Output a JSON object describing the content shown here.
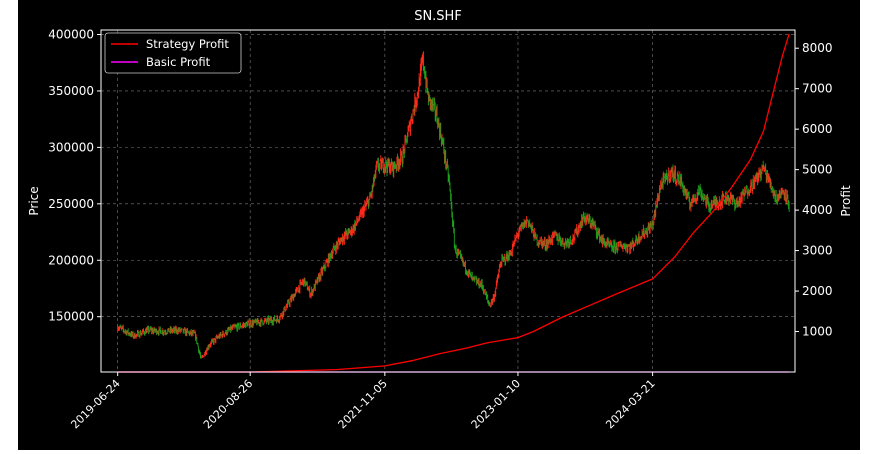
{
  "chart_data": {
    "type": "line",
    "title": "SN.SHF",
    "xlabel": "",
    "ylabel": "Price",
    "y2label": "Profit",
    "x_ticks": [
      "2019-06-24",
      "2020-08-26",
      "2021-11-05",
      "2023-01-10",
      "2024-03-21"
    ],
    "y_ticks": [
      150000,
      200000,
      250000,
      300000,
      350000,
      400000
    ],
    "y2_ticks": [
      1000,
      2000,
      3000,
      4000,
      5000,
      6000,
      7000,
      8000
    ],
    "ylim": [
      101000,
      404000
    ],
    "y2lim": [
      0,
      8450
    ],
    "xlim": [
      "2019-05-01",
      "2025-06-25"
    ],
    "grid": true,
    "legend_position": "upper left",
    "legend": [
      "Strategy Profit",
      "Basic Profit"
    ],
    "colors": {
      "up": "#ff2a1a",
      "down": "#1ca21c",
      "strategy": "#ff0000",
      "basic": "#ff00ff",
      "background": "#000000"
    },
    "price_series": {
      "name": "",
      "x": [
        "2019-06-24",
        "2019-08-15",
        "2019-10-01",
        "2019-11-15",
        "2020-01-10",
        "2020-03-01",
        "2020-03-20",
        "2020-04-15",
        "2020-05-15",
        "2020-07-01",
        "2020-08-26",
        "2020-10-15",
        "2020-11-25",
        "2021-01-05",
        "2021-02-15",
        "2021-03-10",
        "2021-04-20",
        "2021-05-20",
        "2021-06-20",
        "2021-07-20",
        "2021-08-20",
        "2021-09-20",
        "2021-10-10",
        "2021-11-05",
        "2021-12-01",
        "2022-01-01",
        "2022-01-25",
        "2022-02-20",
        "2022-03-08",
        "2022-03-25",
        "2022-04-20",
        "2022-05-10",
        "2022-06-01",
        "2022-06-20",
        "2022-07-15",
        "2022-08-15",
        "2022-09-15",
        "2022-10-10",
        "2022-10-25",
        "2022-11-15",
        "2022-12-15",
        "2023-01-10",
        "2023-02-10",
        "2023-03-10",
        "2023-04-10",
        "2023-05-10",
        "2023-06-10",
        "2023-07-10",
        "2023-08-10",
        "2023-09-10",
        "2023-10-10",
        "2023-11-10",
        "2023-12-10",
        "2024-01-10",
        "2024-02-10",
        "2024-03-01",
        "2024-03-21",
        "2024-04-15",
        "2024-05-20",
        "2024-06-20",
        "2024-07-20",
        "2024-08-20",
        "2024-09-20",
        "2024-10-20",
        "2024-11-20",
        "2024-12-20",
        "2025-01-20",
        "2025-02-15",
        "2025-03-15",
        "2025-04-05",
        "2025-04-25",
        "2025-05-20",
        "2025-06-06"
      ],
      "y": [
        141000,
        133000,
        138000,
        137000,
        138000,
        134000,
        112000,
        125000,
        132000,
        140000,
        144000,
        146000,
        148000,
        165000,
        182000,
        170000,
        192000,
        208000,
        220000,
        226000,
        240000,
        256000,
        283000,
        285000,
        282000,
        292000,
        320000,
        350000,
        378000,
        344000,
        330000,
        305000,
        270000,
        210000,
        198000,
        183000,
        178000,
        160000,
        168000,
        198000,
        205000,
        224000,
        236000,
        218000,
        214000,
        222000,
        215000,
        220000,
        238000,
        232000,
        217000,
        211000,
        213000,
        212000,
        222000,
        226000,
        232000,
        266000,
        278000,
        270000,
        250000,
        262000,
        248000,
        252000,
        256000,
        250000,
        262000,
        270000,
        282000,
        268000,
        255000,
        262000,
        250000
      ]
    },
    "strategy_series": {
      "name": "Strategy Profit",
      "x": [
        "2019-06-24",
        "2020-08-26",
        "2021-06-01",
        "2021-11-05",
        "2022-02-01",
        "2022-05-01",
        "2022-08-01",
        "2022-10-01",
        "2023-01-10",
        "2023-03-01",
        "2023-06-01",
        "2023-09-01",
        "2023-12-01",
        "2024-03-21",
        "2024-06-01",
        "2024-08-01",
        "2024-10-01",
        "2024-12-01",
        "2025-02-01",
        "2025-03-15",
        "2025-04-15",
        "2025-05-15",
        "2025-06-06"
      ],
      "y": [
        0,
        0,
        60,
        150,
        280,
        450,
        600,
        720,
        850,
        1000,
        1350,
        1650,
        1950,
        2300,
        2850,
        3450,
        3950,
        4550,
        5250,
        5950,
        6900,
        7800,
        8350
      ]
    },
    "basic_series": {
      "name": "Basic Profit",
      "x": [
        "2019-06-24",
        "2025-06-06"
      ],
      "y": [
        0,
        0
      ]
    }
  }
}
